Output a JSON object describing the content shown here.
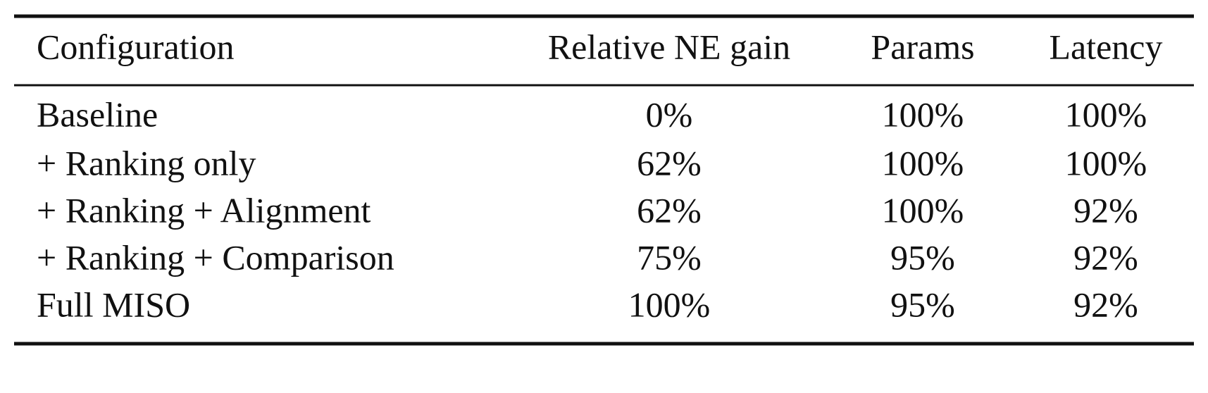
{
  "table": {
    "header": [
      "Configuration",
      "Relative NE gain",
      "Params",
      "Latency"
    ],
    "rows": [
      [
        "Baseline",
        "0%",
        "100%",
        "100%"
      ],
      [
        "+ Ranking only",
        "62%",
        "100%",
        "100%"
      ],
      [
        "+ Ranking + Alignment",
        "62%",
        "100%",
        "92%"
      ],
      [
        "+ Ranking + Comparison",
        "75%",
        "95%",
        "92%"
      ],
      [
        "Full MISO",
        "100%",
        "95%",
        "92%"
      ]
    ]
  }
}
